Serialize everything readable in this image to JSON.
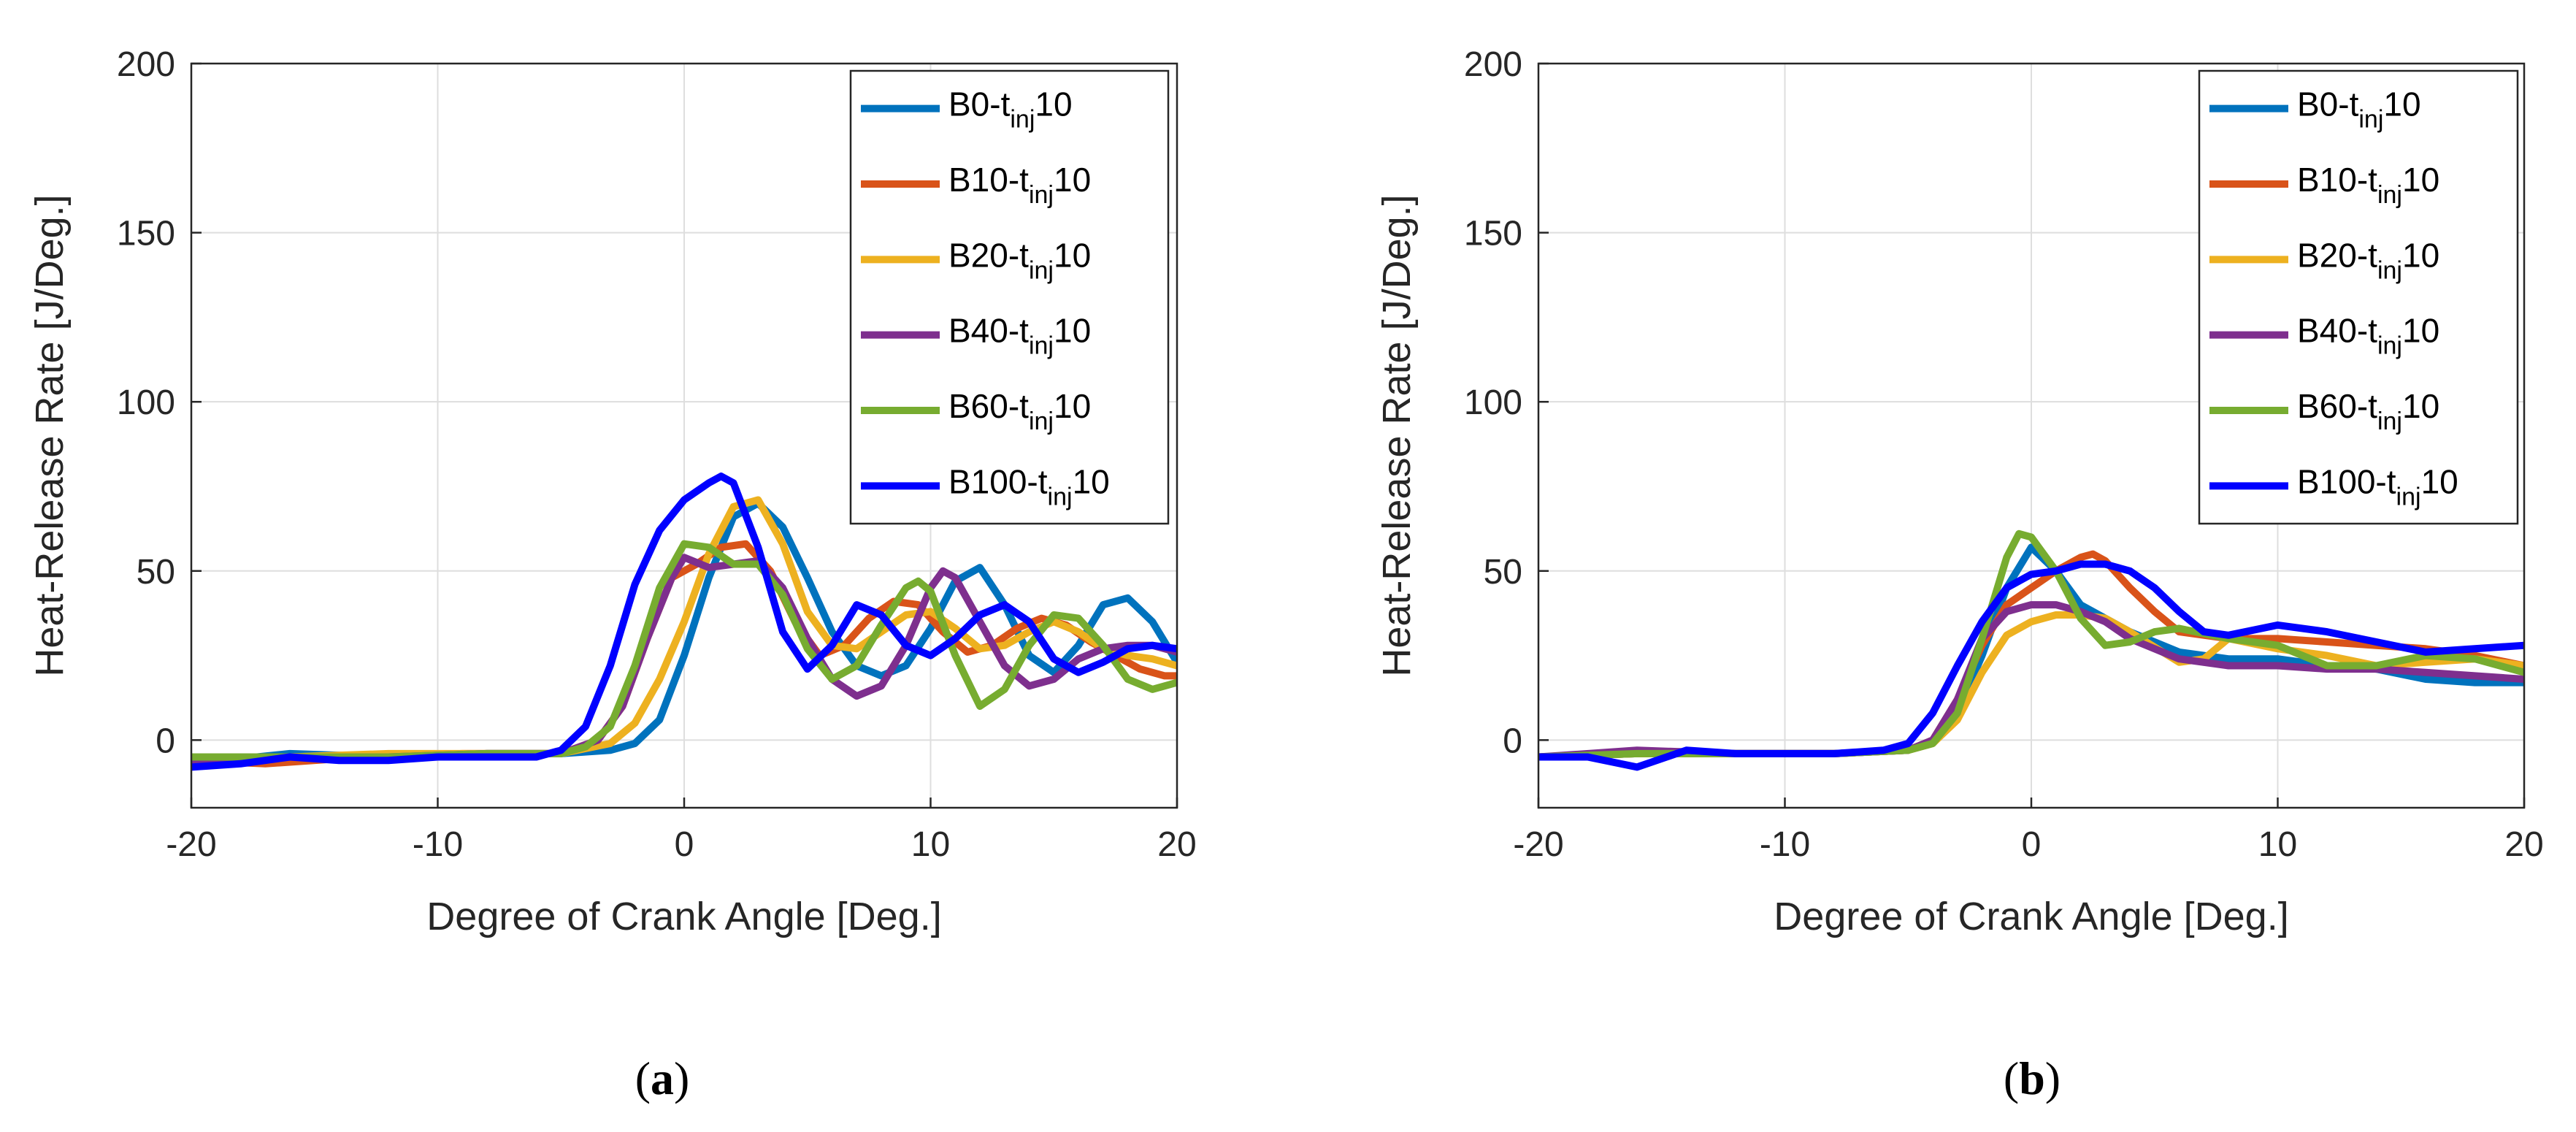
{
  "chart_data": [
    {
      "type": "line",
      "panel_label": "a",
      "title": "",
      "xlabel": "Degree of Crank Angle [Deg.]",
      "ylabel": "Heat-Release Rate [J/Deg.]",
      "xlim": [
        -20,
        20
      ],
      "ylim": [
        -20,
        200
      ],
      "xticks": [
        -20,
        -10,
        0,
        10,
        20
      ],
      "yticks": [
        0,
        50,
        100,
        150,
        200
      ],
      "grid": true,
      "legend_position": "top-right",
      "series": [
        {
          "name": "B0-tinj10",
          "label_prefix": "B0-t",
          "label_sub": "inj",
          "label_suffix": "10",
          "color": "#0072BD",
          "x": [
            -20,
            -16,
            -12,
            -8,
            -5,
            -3,
            -2,
            -1,
            0,
            1,
            2,
            3,
            4,
            5,
            6,
            7,
            8,
            9,
            10,
            11,
            12,
            13,
            14,
            15,
            16,
            17,
            18,
            19,
            20
          ],
          "y": [
            -7,
            -4,
            -5,
            -4,
            -4,
            -3,
            -1,
            6,
            25,
            48,
            66,
            70,
            63,
            48,
            32,
            22,
            19,
            22,
            33,
            47,
            51,
            40,
            25,
            20,
            28,
            40,
            42,
            35,
            23
          ]
        },
        {
          "name": "B10-tinj10",
          "label_prefix": "B10-t",
          "label_sub": "inj",
          "label_suffix": "10",
          "color": "#D95319",
          "x": [
            -20,
            -17,
            -13,
            -9,
            -5,
            -3.5,
            -2.5,
            -1.5,
            -0.5,
            0.5,
            1.5,
            2.5,
            3.5,
            4.5,
            5.5,
            6.5,
            7.5,
            8.5,
            9.5,
            10.5,
            11.5,
            12.5,
            13.5,
            14.5,
            15.5,
            16.5,
            17.5,
            18.5,
            19.5,
            20
          ],
          "y": [
            -6,
            -7,
            -5,
            -4,
            -4,
            0,
            10,
            30,
            48,
            52,
            57,
            58,
            50,
            35,
            25,
            28,
            36,
            41,
            40,
            32,
            26,
            28,
            33,
            36,
            34,
            29,
            25,
            21,
            19,
            19
          ]
        },
        {
          "name": "B20-tinj10",
          "label_prefix": "B20-t",
          "label_sub": "inj",
          "label_suffix": "10",
          "color": "#EDB120",
          "x": [
            -20,
            -16,
            -12,
            -8,
            -5,
            -3,
            -2,
            -1,
            0,
            1,
            2,
            3,
            4,
            5,
            6,
            7,
            8,
            9,
            10,
            11,
            12,
            13,
            14,
            15,
            16,
            17,
            18,
            19,
            20
          ],
          "y": [
            -5,
            -5,
            -4,
            -4,
            -4,
            -1,
            5,
            18,
            35,
            55,
            69,
            71,
            58,
            38,
            28,
            27,
            32,
            37,
            38,
            33,
            27,
            28,
            32,
            35,
            32,
            27,
            25,
            24,
            22
          ]
        },
        {
          "name": "B40-tinj10",
          "label_prefix": "B40-t",
          "label_sub": "inj",
          "label_suffix": "10",
          "color": "#7E2F8E",
          "x": [
            -20,
            -16,
            -12,
            -8,
            -5,
            -3.5,
            -2.5,
            -1.5,
            -0.5,
            0,
            1,
            2,
            3,
            4,
            5,
            6,
            7,
            8,
            9,
            10,
            10.5,
            11,
            12,
            13,
            14,
            15,
            16,
            17,
            18,
            19,
            20
          ],
          "y": [
            -6,
            -5,
            -5,
            -4,
            -4,
            0,
            10,
            30,
            48,
            54,
            51,
            52,
            53,
            45,
            30,
            18,
            13,
            16,
            28,
            45,
            50,
            48,
            35,
            22,
            16,
            18,
            24,
            27,
            28,
            28,
            26
          ]
        },
        {
          "name": "B60-tinj10",
          "label_prefix": "B60-t",
          "label_sub": "inj",
          "label_suffix": "10",
          "color": "#77AC30",
          "x": [
            -20,
            -16,
            -12,
            -8,
            -5,
            -4,
            -3,
            -2,
            -1,
            0,
            1,
            2,
            3,
            4,
            5,
            6,
            7,
            8,
            9,
            9.5,
            10,
            11,
            12,
            13,
            14,
            15,
            16,
            17,
            18,
            19,
            20
          ],
          "y": [
            -5,
            -5,
            -5,
            -4,
            -4,
            -2,
            4,
            22,
            45,
            58,
            57,
            52,
            52,
            43,
            27,
            18,
            22,
            34,
            45,
            47,
            44,
            25,
            10,
            15,
            28,
            37,
            36,
            28,
            18,
            15,
            17
          ]
        },
        {
          "name": "B100-tinj10",
          "label_prefix": "B100-t",
          "label_sub": "inj",
          "label_suffix": "10",
          "color": "#0000FF",
          "x": [
            -20,
            -18,
            -16,
            -14,
            -12,
            -10,
            -8,
            -6,
            -5,
            -4,
            -3,
            -2,
            -1,
            0,
            1,
            1.5,
            2,
            3,
            4,
            5,
            6,
            7,
            8,
            9,
            10,
            11,
            12,
            13,
            14,
            15,
            16,
            17,
            18,
            19,
            20
          ],
          "y": [
            -8,
            -7,
            -5,
            -6,
            -6,
            -5,
            -5,
            -5,
            -3,
            4,
            22,
            46,
            62,
            71,
            76,
            78,
            76,
            57,
            32,
            21,
            28,
            40,
            37,
            28,
            25,
            30,
            37,
            40,
            35,
            24,
            20,
            23,
            27,
            28,
            27
          ]
        }
      ]
    },
    {
      "type": "line",
      "panel_label": "b",
      "title": "",
      "xlabel": "Degree of Crank Angle [Deg.]",
      "ylabel": "Heat-Release Rate [J/Deg.]",
      "xlim": [
        -20,
        20
      ],
      "ylim": [
        -20,
        200
      ],
      "xticks": [
        -20,
        -10,
        0,
        10,
        20
      ],
      "yticks": [
        0,
        50,
        100,
        150,
        200
      ],
      "grid": true,
      "legend_position": "top-right",
      "series": [
        {
          "name": "B0-tinj10",
          "label_prefix": "B0-t",
          "label_sub": "inj",
          "label_suffix": "10",
          "color": "#0072BD",
          "x": [
            -20,
            -16,
            -12,
            -8,
            -5,
            -4,
            -3,
            -2,
            -1,
            0,
            1,
            2,
            3,
            4,
            6,
            8,
            10,
            12,
            14,
            16,
            18,
            20
          ],
          "y": [
            -5,
            -4,
            -4,
            -4,
            -3,
            0,
            8,
            25,
            45,
            57,
            50,
            40,
            36,
            32,
            26,
            24,
            24,
            22,
            21,
            18,
            17,
            17
          ]
        },
        {
          "name": "B10-tinj10",
          "label_prefix": "B10-t",
          "label_sub": "inj",
          "label_suffix": "10",
          "color": "#D95319",
          "x": [
            -20,
            -16,
            -12,
            -8,
            -5,
            -4,
            -3,
            -2,
            -1,
            0,
            1,
            2,
            2.5,
            3,
            4,
            5,
            6,
            8,
            10,
            12,
            14,
            16,
            18,
            20
          ],
          "y": [
            -5,
            -4,
            -4,
            -4,
            -3,
            0,
            12,
            28,
            40,
            45,
            50,
            54,
            55,
            53,
            45,
            38,
            32,
            30,
            30,
            29,
            28,
            27,
            25,
            22
          ]
        },
        {
          "name": "B20-tinj10",
          "label_prefix": "B20-t",
          "label_sub": "inj",
          "label_suffix": "10",
          "color": "#EDB120",
          "x": [
            -20,
            -16,
            -12,
            -8,
            -5,
            -4,
            -3,
            -2,
            -1,
            0,
            1,
            2,
            3,
            4,
            6,
            7,
            8,
            10,
            12,
            14,
            16,
            18,
            20
          ],
          "y": [
            -5,
            -4,
            -4,
            -4,
            -3,
            -1,
            6,
            20,
            31,
            35,
            37,
            37,
            36,
            32,
            23,
            24,
            30,
            27,
            25,
            22,
            23,
            24,
            22
          ]
        },
        {
          "name": "B40-tinj10",
          "label_prefix": "B40-t",
          "label_sub": "inj",
          "label_suffix": "10",
          "color": "#7E2F8E",
          "x": [
            -20,
            -16,
            -12,
            -8,
            -5,
            -4,
            -3,
            -2,
            -1,
            0,
            1,
            2,
            3,
            4,
            6,
            8,
            10,
            12,
            14,
            16,
            18,
            20
          ],
          "y": [
            -5,
            -3,
            -4,
            -4,
            -3,
            0,
            12,
            30,
            38,
            40,
            40,
            38,
            35,
            30,
            24,
            22,
            22,
            21,
            21,
            20,
            19,
            18
          ]
        },
        {
          "name": "B60-tinj10",
          "label_prefix": "B60-t",
          "label_sub": "inj",
          "label_suffix": "10",
          "color": "#77AC30",
          "x": [
            -20,
            -16,
            -12,
            -8,
            -5,
            -4,
            -3,
            -2,
            -1,
            -0.5,
            0,
            1,
            2,
            3,
            4,
            5,
            6,
            8,
            10,
            12,
            14,
            16,
            18,
            20
          ],
          "y": [
            -5,
            -4,
            -4,
            -4,
            -3,
            -1,
            8,
            30,
            54,
            61,
            60,
            50,
            36,
            28,
            29,
            32,
            33,
            30,
            28,
            22,
            22,
            25,
            24,
            20
          ]
        },
        {
          "name": "B100-tinj10",
          "label_prefix": "B100-t",
          "label_sub": "inj",
          "label_suffix": "10",
          "color": "#0000FF",
          "x": [
            -20,
            -18,
            -16,
            -14,
            -12,
            -10,
            -8,
            -6,
            -5,
            -4,
            -3,
            -2,
            -1,
            0,
            1,
            2,
            3,
            4,
            5,
            6,
            7,
            8,
            10,
            12,
            14,
            16,
            18,
            20
          ],
          "y": [
            -5,
            -5,
            -8,
            -3,
            -4,
            -4,
            -4,
            -3,
            -1,
            8,
            22,
            35,
            45,
            49,
            50,
            52,
            52,
            50,
            45,
            38,
            32,
            31,
            34,
            32,
            29,
            26,
            27,
            28
          ]
        }
      ]
    }
  ]
}
